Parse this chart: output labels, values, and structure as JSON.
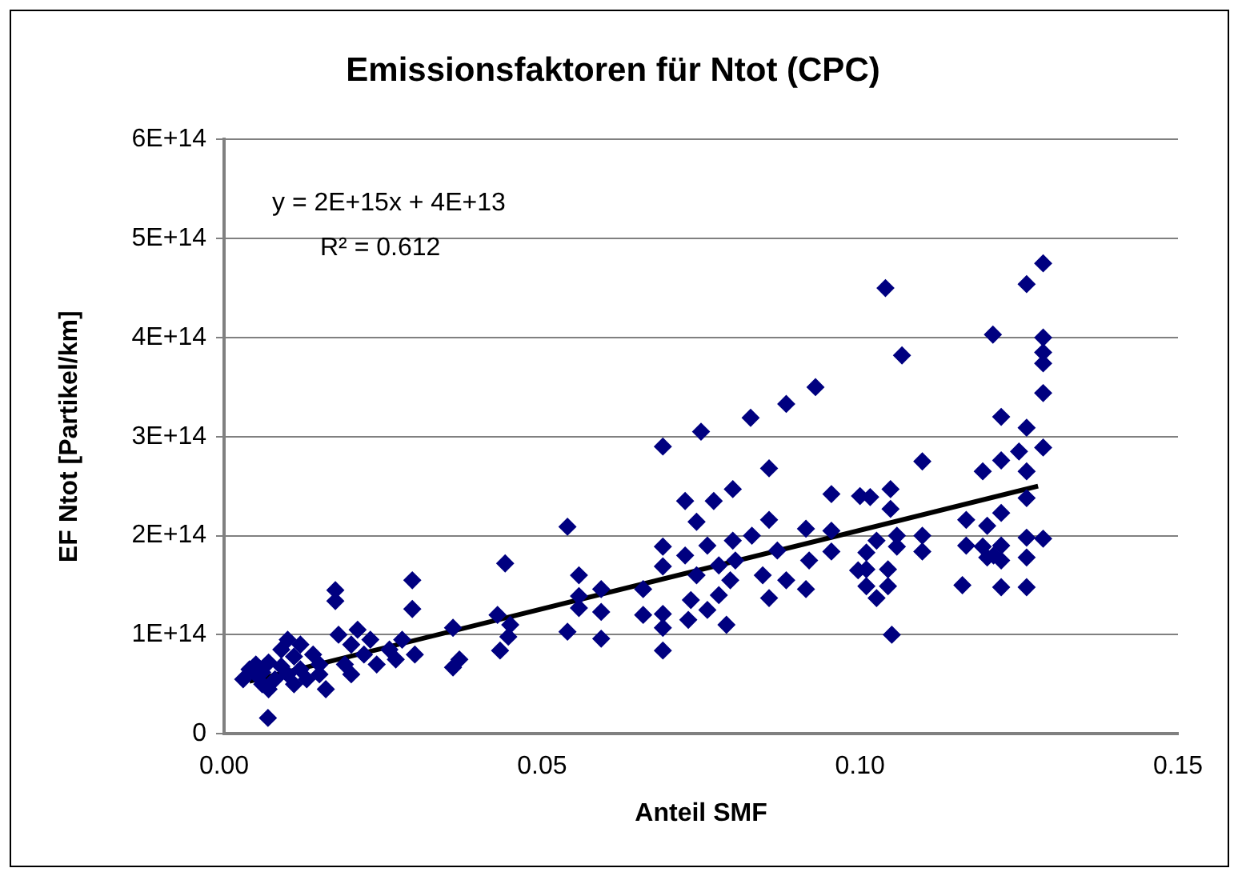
{
  "chart_data": {
    "type": "scatter",
    "title": "Emissionsfaktoren für Ntot (CPC)",
    "xlabel": "Anteil SMF",
    "ylabel": "EF Ntot [Partikel/km]",
    "xlim": [
      0,
      0.15
    ],
    "xticks": [
      {
        "value": 0,
        "label": "0.00"
      },
      {
        "value": 0.05,
        "label": "0.05"
      },
      {
        "value": 0.1,
        "label": "0.10"
      },
      {
        "value": 0.15,
        "label": "0.15"
      }
    ],
    "ylim": [
      0,
      600000000000000.0
    ],
    "yticks": [
      0,
      {
        "value": 100000000000000.0,
        "label": "1E+14"
      },
      {
        "value": 200000000000000.0,
        "label": "2E+14"
      },
      {
        "value": 300000000000000.0,
        "label": "3E+14"
      },
      {
        "value": 400000000000000.0,
        "label": "4E+14"
      },
      {
        "value": 500000000000000.0,
        "label": "5E+14"
      },
      {
        "value": 600000000000000.0,
        "label": "6E+14"
      }
    ],
    "grid": "y",
    "legend": false,
    "marker": "diamond",
    "annotations": [
      "y = 2E+15x + 4E+13",
      "R² = 0.612"
    ],
    "series": [
      {
        "type": "scatter",
        "color": "#000080",
        "x": [
          0.003,
          0.004,
          0.005,
          0.005,
          0.006,
          0.006,
          0.007,
          0.007,
          0.0069,
          0.008,
          0.009,
          0.009,
          0.01,
          0.01,
          0.011,
          0.011,
          0.012,
          0.012,
          0.013,
          0.014,
          0.015,
          0.015,
          0.016,
          0.0175,
          0.0175,
          0.018,
          0.019,
          0.02,
          0.02,
          0.021,
          0.022,
          0.023,
          0.024,
          0.026,
          0.027,
          0.028,
          0.0296,
          0.0296,
          0.03,
          0.036,
          0.036,
          0.037,
          0.0434,
          0.0442,
          0.0447,
          0.043,
          0.045,
          0.054,
          0.054,
          0.0558,
          0.0558,
          0.0558,
          0.0593,
          0.0593,
          0.0593,
          0.0659,
          0.0659,
          0.069,
          0.069,
          0.069,
          0.069,
          0.069,
          0.069,
          0.0725,
          0.0743,
          0.075,
          0.077,
          0.08,
          0.0828,
          0.0857,
          0.0857,
          0.0884,
          0.0725,
          0.0743,
          0.076,
          0.0778,
          0.0796,
          0.0734,
          0.076,
          0.0778,
          0.073,
          0.079,
          0.0804,
          0.08,
          0.083,
          0.0847,
          0.0857,
          0.0884,
          0.087,
          0.0915,
          0.0915,
          0.092,
          0.0955,
          0.0955,
          0.0955,
          0.0997,
          0.1,
          0.093,
          0.104,
          0.1066,
          0.1098,
          0.1016,
          0.1048,
          0.1048,
          0.101,
          0.101,
          0.101,
          0.1026,
          0.1044,
          0.1044,
          0.1058,
          0.1058,
          0.1026,
          0.105,
          0.1098,
          0.1098,
          0.1209,
          0.1262,
          0.1288,
          0.1288,
          0.1288,
          0.1288,
          0.1288,
          0.1222,
          0.1262,
          0.1288,
          0.125,
          0.1222,
          0.1193,
          0.1262,
          0.1262,
          0.1167,
          0.12,
          0.1222,
          0.1193,
          0.1222,
          0.1167,
          0.12,
          0.1262,
          0.1288,
          0.1222,
          0.1262,
          0.1161,
          0.1222,
          0.1262,
          0.121
        ],
        "values": [
          55000000000000.0,
          65000000000000.0,
          60000000000000.0,
          70000000000000.0,
          50000000000000.0,
          62000000000000.0,
          72000000000000.0,
          45000000000000.0,
          16000000000000.0,
          55000000000000.0,
          68000000000000.0,
          85000000000000.0,
          60000000000000.0,
          95000000000000.0,
          50000000000000.0,
          78000000000000.0,
          90000000000000.0,
          65000000000000.0,
          55000000000000.0,
          80000000000000.0,
          70000000000000.0,
          60000000000000.0,
          45000000000000.0,
          145000000000000.0,
          134000000000000.0,
          100000000000000.0,
          70000000000000.0,
          90000000000000.0,
          60000000000000.0,
          105000000000000.0,
          80000000000000.0,
          95000000000000.0,
          70000000000000.0,
          85000000000000.0,
          75000000000000.0,
          95000000000000.0,
          155000000000000.0,
          126000000000000.0,
          80000000000000.0,
          107000000000000.0,
          67000000000000.0,
          75000000000000.0,
          84000000000000.0,
          172000000000000.0,
          98000000000000.0,
          120000000000000.0,
          110000000000000.0,
          209000000000000.0,
          103000000000000.0,
          160000000000000.0,
          139000000000000.0,
          127000000000000.0,
          146000000000000.0,
          123000000000000.0,
          96000000000000.0,
          146000000000000.0,
          120000000000000.0,
          290000000000000.0,
          189000000000000.0,
          169000000000000.0,
          121000000000000.0,
          107000000000000.0,
          84000000000000.0,
          235000000000000.0,
          214000000000000.0,
          305000000000000.0,
          235000000000000.0,
          247000000000000.0,
          319000000000000.0,
          268000000000000.0,
          216000000000000.0,
          333000000000000.0,
          180000000000000.0,
          160000000000000.0,
          190000000000000.0,
          170000000000000.0,
          155000000000000.0,
          135000000000000.0,
          125000000000000.0,
          140000000000000.0,
          115000000000000.0,
          110000000000000.0,
          175000000000000.0,
          195000000000000.0,
          200000000000000.0,
          160000000000000.0,
          137000000000000.0,
          155000000000000.0,
          185000000000000.0,
          207000000000000.0,
          146000000000000.0,
          175000000000000.0,
          242000000000000.0,
          205000000000000.0,
          184000000000000.0,
          165000000000000.0,
          240000000000000.0,
          350000000000000.0,
          450000000000000.0,
          382000000000000.0,
          275000000000000.0,
          239000000000000.0,
          247000000000000.0,
          227000000000000.0,
          183000000000000.0,
          166000000000000.0,
          149000000000000.0,
          195000000000000.0,
          166000000000000.0,
          149000000000000.0,
          200000000000000.0,
          189000000000000.0,
          137000000000000.0,
          100000000000000.0,
          200000000000000.0,
          184000000000000.0,
          403000000000000.0,
          454000000000000.0,
          475000000000000.0,
          400000000000000.0,
          385000000000000.0,
          374000000000000.0,
          344000000000000.0,
          320000000000000.0,
          309000000000000.0,
          289000000000000.0,
          285000000000000.0,
          276000000000000.0,
          265000000000000.0,
          265000000000000.0,
          238000000000000.0,
          216000000000000.0,
          210000000000000.0,
          223000000000000.0,
          189000000000000.0,
          190000000000000.0,
          190000000000000.0,
          178000000000000.0,
          198000000000000.0,
          197000000000000.0,
          175000000000000.0,
          178000000000000.0,
          150000000000000.0,
          148000000000000.0,
          148000000000000.0,
          180000000000000.0
        ]
      },
      {
        "type": "line",
        "color": "#000000",
        "marker": "none",
        "x": [
          0.004,
          0.128
        ],
        "values": [
          53000000000000.0,
          250000000000000.0
        ]
      }
    ]
  }
}
